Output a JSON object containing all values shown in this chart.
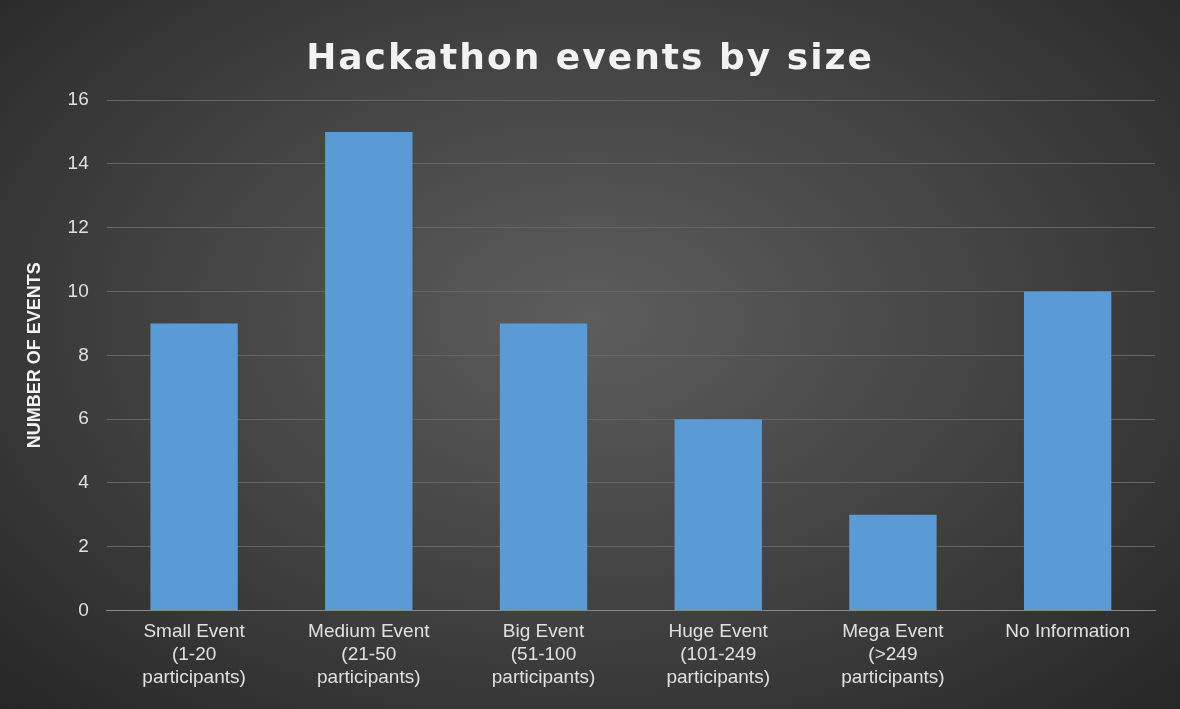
{
  "chart_data": {
    "type": "bar",
    "title": "Hackathon events by size",
    "ylabel": "NUMBER OF EVENTS",
    "categories": [
      "Small Event (1-20 participants)",
      "Medium Event (21-50 participants)",
      "Big Event (51-100 participants)",
      "Huge Event (101-249 participants)",
      "Mega Event (>249 participants)",
      "No Information"
    ],
    "values": [
      9,
      15,
      9,
      6,
      3,
      10
    ],
    "color": "#5b9bd5",
    "ylim": [
      0,
      16
    ],
    "yticks": [
      0,
      2,
      4,
      6,
      8,
      10,
      12,
      14,
      16
    ],
    "grid": "y",
    "legend": false
  }
}
